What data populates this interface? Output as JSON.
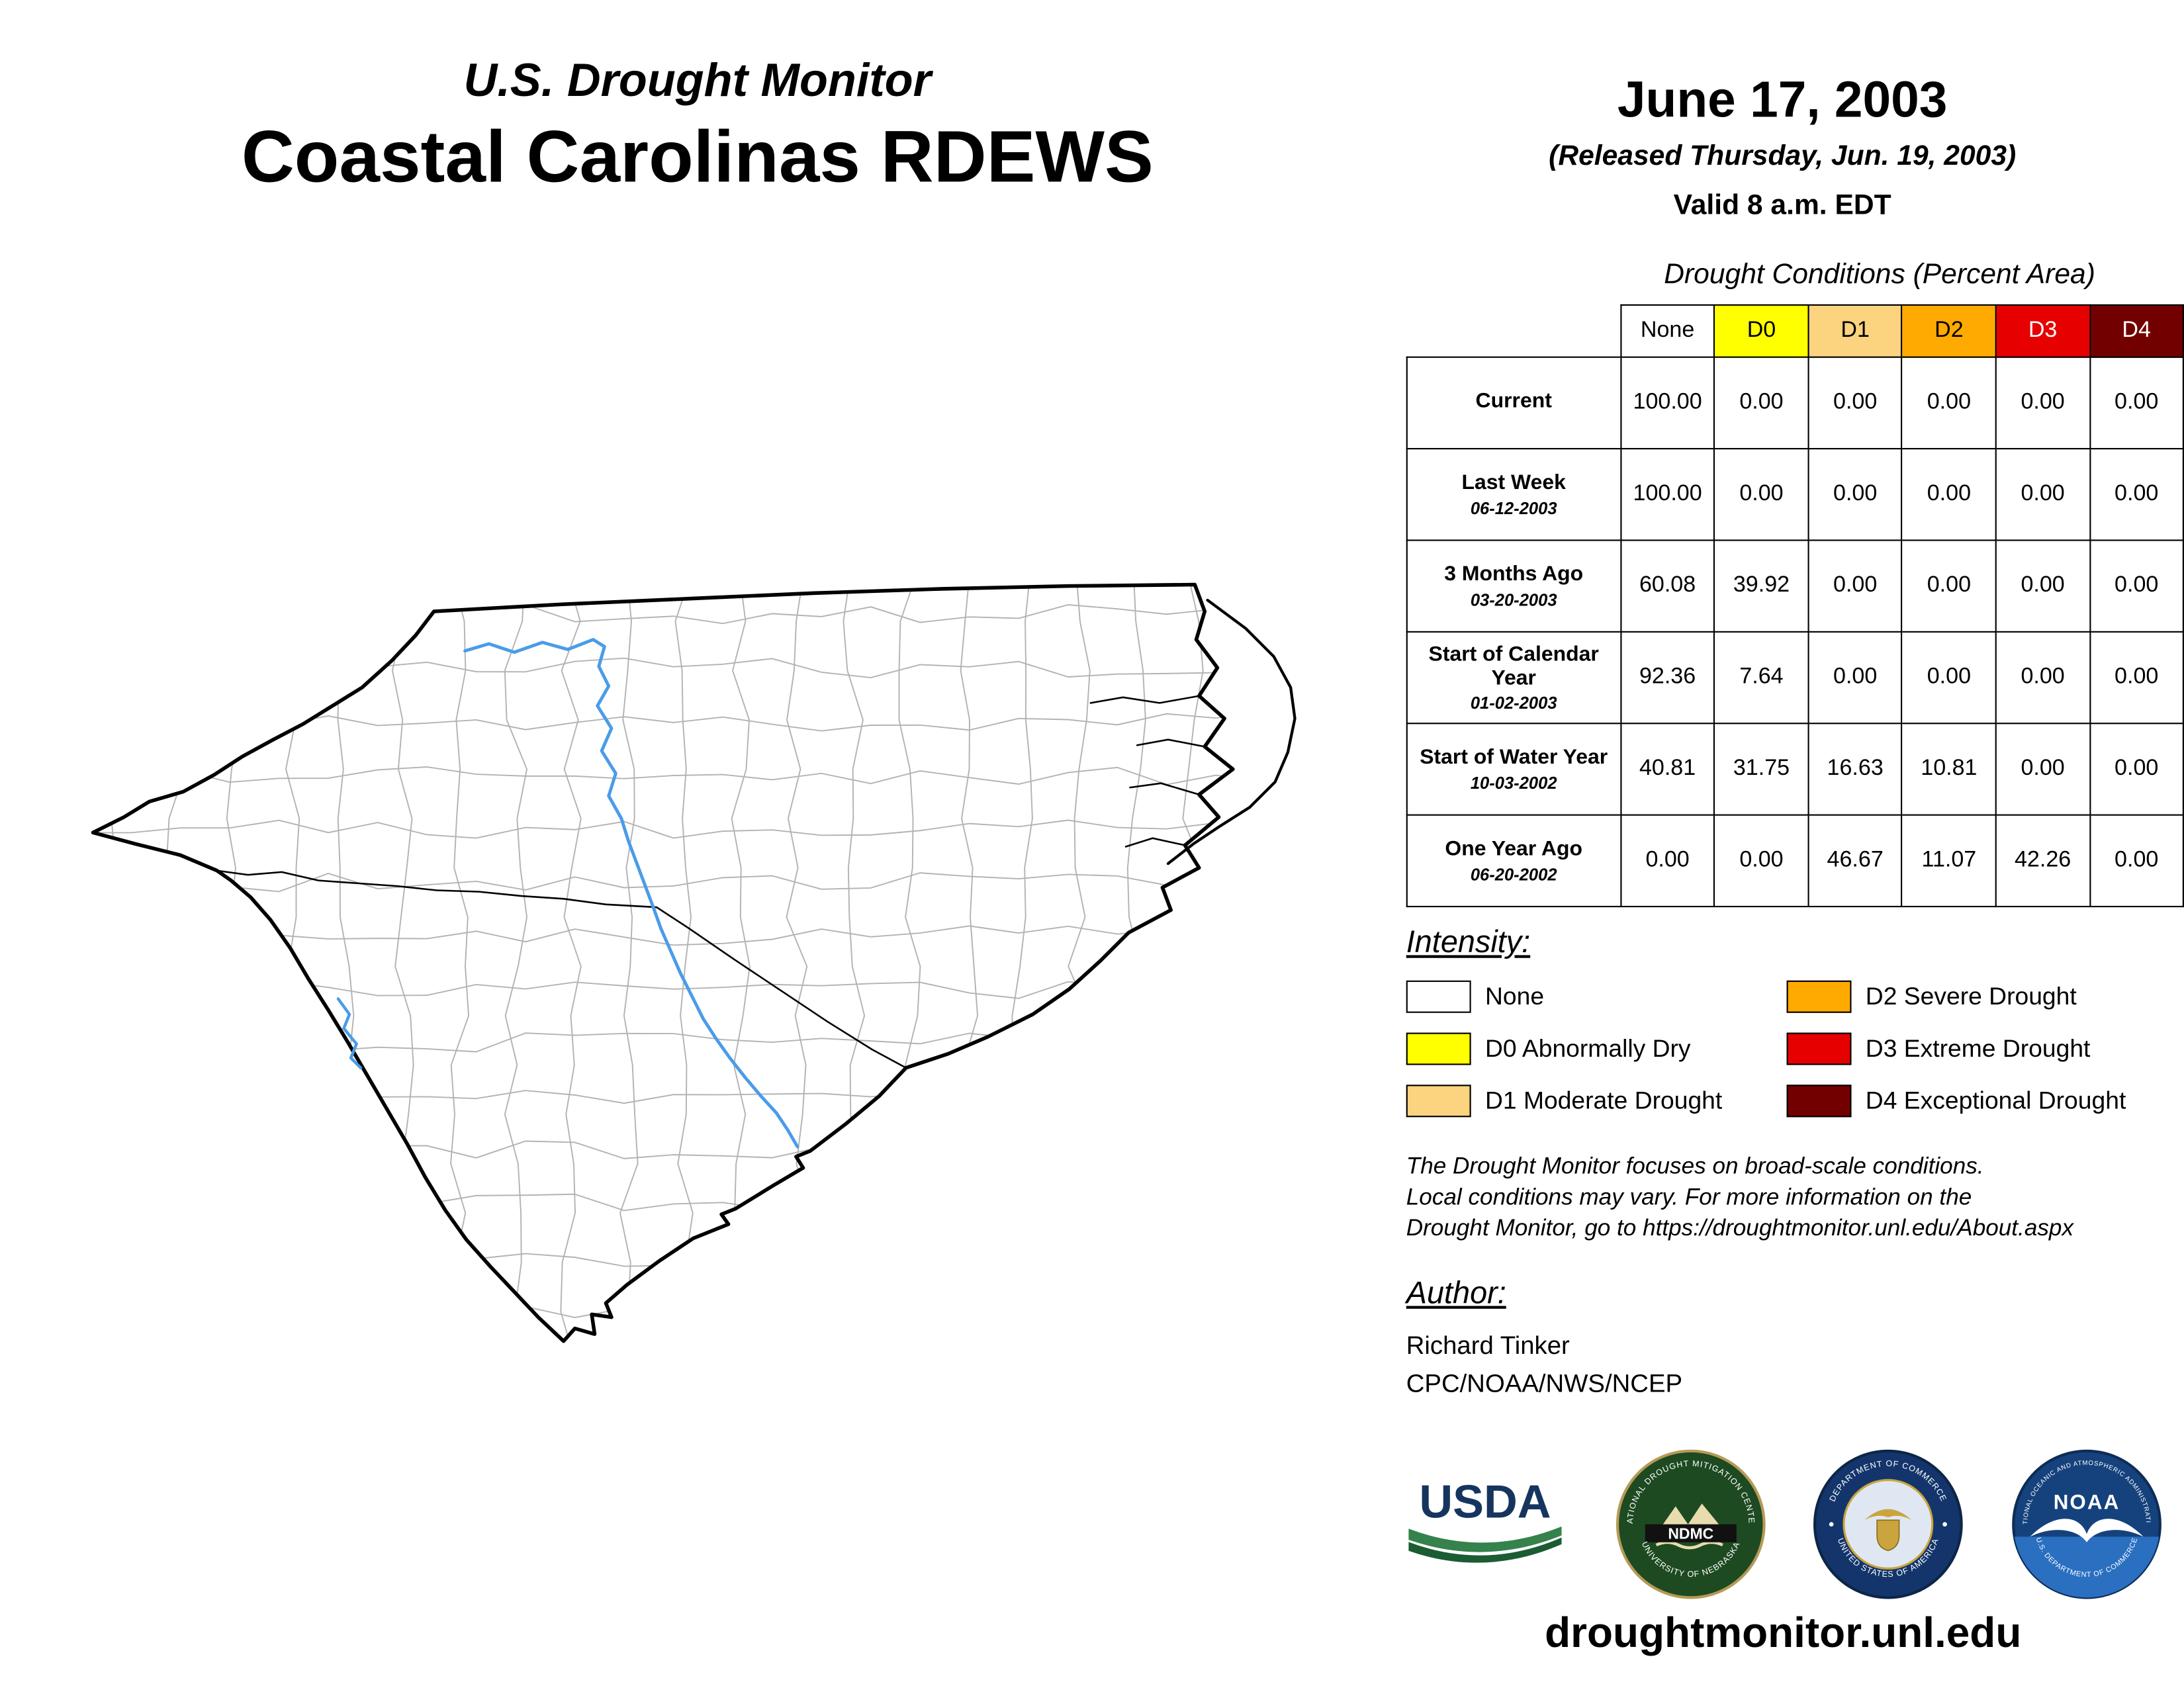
{
  "header": {
    "kicker": "U.S. Drought Monitor",
    "title": "Coastal Carolinas RDEWS",
    "date": "June 17, 2003",
    "released": "(Released Thursday, Jun. 19, 2003)",
    "valid": "Valid 8 a.m. EDT"
  },
  "table": {
    "caption": "Drought Conditions (Percent Area)",
    "columns": [
      {
        "label": "None",
        "bg": "#FFFFFF",
        "fg": "#000000"
      },
      {
        "label": "D0",
        "bg": "#FFFF00",
        "fg": "#000000"
      },
      {
        "label": "D1",
        "bg": "#FCD37F",
        "fg": "#000000"
      },
      {
        "label": "D2",
        "bg": "#FFAA00",
        "fg": "#000000"
      },
      {
        "label": "D3",
        "bg": "#E60000",
        "fg": "#FFFFFF"
      },
      {
        "label": "D4",
        "bg": "#730000",
        "fg": "#FFFFFF"
      }
    ],
    "rows": [
      {
        "label": "Current",
        "date": "",
        "values": [
          "100.00",
          "0.00",
          "0.00",
          "0.00",
          "0.00",
          "0.00"
        ]
      },
      {
        "label": "Last Week",
        "date": "06-12-2003",
        "values": [
          "100.00",
          "0.00",
          "0.00",
          "0.00",
          "0.00",
          "0.00"
        ]
      },
      {
        "label": "3 Months Ago",
        "date": "03-20-2003",
        "values": [
          "60.08",
          "39.92",
          "0.00",
          "0.00",
          "0.00",
          "0.00"
        ]
      },
      {
        "label": "Start of Calendar Year",
        "date": "01-02-2003",
        "values": [
          "92.36",
          "7.64",
          "0.00",
          "0.00",
          "0.00",
          "0.00"
        ]
      },
      {
        "label": "Start of Water Year",
        "date": "10-03-2002",
        "values": [
          "40.81",
          "31.75",
          "16.63",
          "10.81",
          "0.00",
          "0.00"
        ]
      },
      {
        "label": "One Year Ago",
        "date": "06-20-2002",
        "values": [
          "0.00",
          "0.00",
          "46.67",
          "11.07",
          "42.26",
          "0.00"
        ]
      }
    ]
  },
  "legend": {
    "heading": "Intensity:",
    "items": [
      {
        "label": "None",
        "color": "#FFFFFF"
      },
      {
        "label": "D0 Abnormally Dry",
        "color": "#FFFF00"
      },
      {
        "label": "D1 Moderate Drought",
        "color": "#FCD37F"
      },
      {
        "label": "D2 Severe Drought",
        "color": "#FFAA00"
      },
      {
        "label": "D3 Extreme Drought",
        "color": "#E60000"
      },
      {
        "label": "D4 Exceptional Drought",
        "color": "#730000"
      }
    ]
  },
  "disclaimer": {
    "line1": "The Drought Monitor focuses on broad-scale conditions.",
    "line2": "Local conditions may vary. For more information on the",
    "line3": "Drought Monitor, go to https://droughtmonitor.unl.edu/About.aspx"
  },
  "author": {
    "heading": "Author:",
    "name": "Richard Tinker",
    "org": "CPC/NOAA/NWS/NCEP"
  },
  "logos": {
    "usda": "USDA",
    "ndmc": "NDMC",
    "ndmc_ring_top": "NATIONAL DROUGHT MITIGATION CENTER",
    "ndmc_ring_bottom": "UNIVERSITY OF NEBRASKA",
    "commerce_ring_top": "DEPARTMENT OF COMMERCE",
    "commerce_ring_bottom": "UNITED STATES OF AMERICA",
    "noaa": "NOAA",
    "noaa_ring_top": "NATIONAL OCEANIC AND ATMOSPHERIC ADMINISTRATION",
    "noaa_ring_bottom": "U.S. DEPARTMENT OF COMMERCE"
  },
  "footer": {
    "url": "droughtmonitor.unl.edu"
  }
}
